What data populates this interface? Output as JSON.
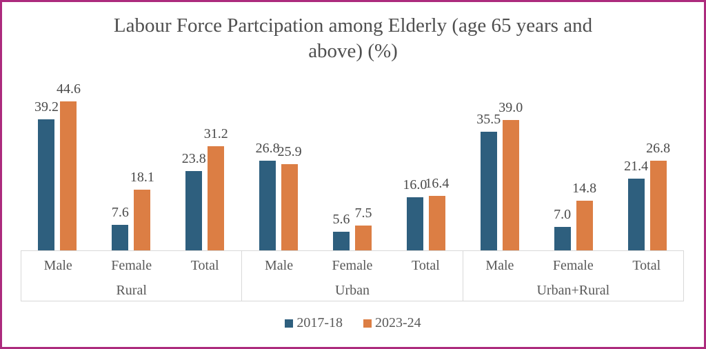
{
  "frame": {
    "border_color": "#AC2B7D"
  },
  "chart_data": {
    "type": "bar",
    "title": "Labour Force Partcipation among Elderly (age 65 years and above) (%)",
    "title_lines": [
      "Labour Force Partcipation among Elderly (age 65 years and",
      "above) (%)"
    ],
    "groups": [
      "Rural",
      "Urban",
      "Urban+Rural"
    ],
    "categories": [
      "Male",
      "Female",
      "Total"
    ],
    "series": [
      {
        "name": "2017-18",
        "color": "#2E5F7E",
        "values": [
          [
            39.2,
            7.6,
            23.8
          ],
          [
            26.8,
            5.6,
            16.0
          ],
          [
            35.5,
            7.0,
            21.4
          ]
        ]
      },
      {
        "name": "2023-24",
        "color": "#DC7E44",
        "values": [
          [
            44.6,
            18.1,
            31.2
          ],
          [
            25.9,
            7.5,
            16.4
          ],
          [
            39.0,
            14.8,
            26.8
          ]
        ]
      }
    ],
    "ylim": [
      0,
      47.5
    ],
    "grid": false,
    "y_axis_visible": false,
    "legend_position": "bottom",
    "value_label_decimals": 1
  },
  "colors": {
    "axis_line": "#D8D8D8",
    "axis_text": "#595959",
    "value_label_text": "#4A4A4A",
    "title_text": "#4F4F4F"
  }
}
